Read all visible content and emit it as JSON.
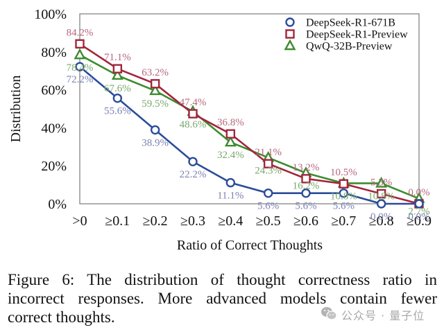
{
  "chart_data": {
    "type": "line",
    "title": "",
    "xlabel": "Ratio of Correct Thoughts",
    "ylabel": "Distribution",
    "categories": [
      ">0",
      "≥0.1",
      "≥0.2",
      "≥0.3",
      "≥0.4",
      "≥0.5",
      "≥0.6",
      "≥0.7",
      "≥0.8",
      "≥0.9"
    ],
    "ylim": [
      0,
      100
    ],
    "yticks": [
      0,
      20,
      40,
      60,
      80,
      100
    ],
    "ytick_labels": [
      "0%",
      "20%",
      "40%",
      "60%",
      "80%",
      "100%"
    ],
    "grid": false,
    "legend": {
      "position": "top-right"
    },
    "frame_color": "#7a7a7a",
    "series": [
      {
        "name": "DeepSeek-R1-671B",
        "marker": "circle",
        "color": "#2b4c9b",
        "label_color": "#7b82b3",
        "label_position": "below",
        "values": [
          72.2,
          55.6,
          38.9,
          22.2,
          11.1,
          5.6,
          5.6,
          5.6,
          0.0,
          0.0
        ],
        "labels": [
          "72.2%",
          "55.6%",
          "38.9%",
          "22.2%",
          "11.1%",
          "5.6%",
          "5.6%",
          "5.6%",
          "0.0%",
          "0.0%"
        ]
      },
      {
        "name": "DeepSeek-R1-Preview",
        "marker": "square",
        "color": "#a3253c",
        "label_color": "#b8657c",
        "label_position": "above",
        "values": [
          84.2,
          71.1,
          63.2,
          47.4,
          36.8,
          21.1,
          13.2,
          10.5,
          5.3,
          0.0
        ],
        "labels": [
          "84.2%",
          "71.1%",
          "63.2%",
          "47.4%",
          "36.8%",
          "21.1%",
          "13.2%",
          "10.5%",
          "5.3%",
          "0.0%"
        ]
      },
      {
        "name": "QwQ-32B-Preview",
        "marker": "triangle",
        "color": "#3b8c2e",
        "label_color": "#79a96b",
        "label_position": "below",
        "values": [
          78.4,
          67.6,
          59.5,
          48.6,
          32.4,
          24.3,
          16.2,
          10.8,
          10.8,
          2.7
        ],
        "labels": [
          "78.4%",
          "67.6%",
          "59.5%",
          "48.6%",
          "32.4%",
          "24.3%",
          "16.2%",
          "10.8%",
          "10.8%",
          "2.7%"
        ]
      }
    ]
  },
  "caption": {
    "lines": [
      "Figure 6: The distribution of thought correctness ratio in",
      "incorrect responses. More advanced models contain fewer",
      "correct thoughts."
    ]
  },
  "watermark": {
    "icon": "wechat-icon",
    "text": "公众号 · 量子位",
    "color": "#a9a9a9"
  }
}
